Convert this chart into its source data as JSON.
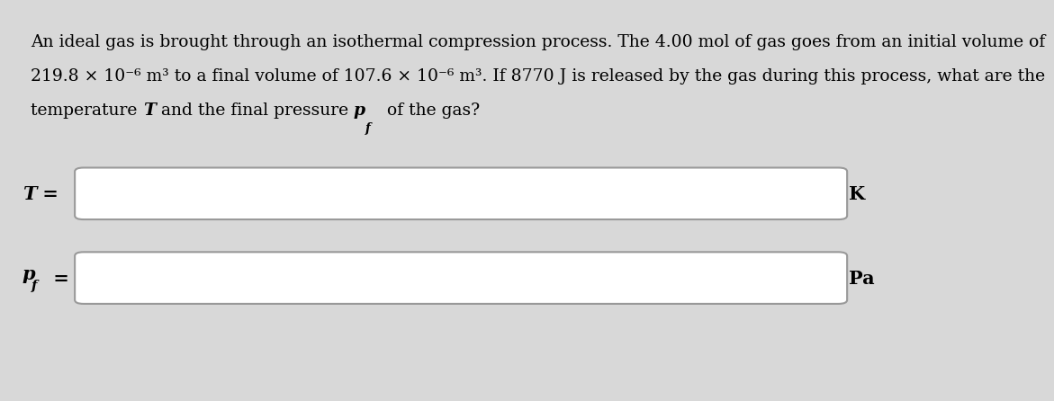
{
  "background_color": "#d8d8d8",
  "panel_color": "#ffffff",
  "line1": "An ideal gas is brought through an isothermal compression process. The 4.00 mol of gas goes from an initial volume of",
  "line2": "219.8 × 10⁻⁶ m³ to a final volume of 107.6 × 10⁻⁶ m³. If 8770 J is released by the gas during this process, what are the",
  "line3a": "temperature ",
  "line3b": "T",
  "line3c": " and the final pressure ",
  "line3d": "p",
  "line3e": "f",
  "line3f": " of the gas?",
  "label1a": "T",
  "label1b": " =",
  "label2a": "p",
  "label2b": "f",
  "label2c": " =",
  "unit1": "K",
  "unit2": "Pa",
  "text_color": "#000000",
  "box_edge_color": "#999999",
  "font_size_body": 13.5,
  "font_size_label": 15
}
